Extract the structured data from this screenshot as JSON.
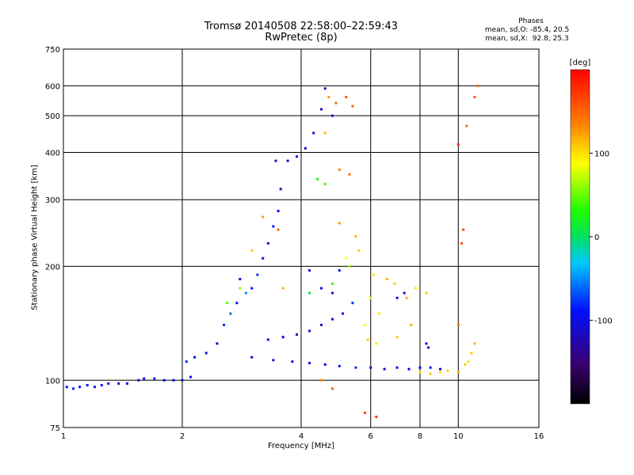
{
  "chart_data": {
    "type": "scatter",
    "title": "Tromsø 20140508 22:58:00–22:59:43",
    "subtitle": "RwPretec (8p)",
    "xlabel": "Frequency [MHz]",
    "ylabel": "Stationary phase Virtual Height [km]",
    "x_scale": "log",
    "y_scale": "log",
    "xlim": [
      1,
      16
    ],
    "ylim": [
      75,
      750
    ],
    "x_ticks": [
      1,
      2,
      4,
      6,
      8,
      10,
      16
    ],
    "y_ticks": [
      75,
      100,
      200,
      300,
      400,
      500,
      600,
      750
    ],
    "grid": true,
    "legend": {
      "title": "Phases",
      "lines": [
        "mean, sd,O: -85.4, 20.5",
        "mean, sd,X:  92.8, 25.3"
      ],
      "position": "top-right"
    },
    "colorbar": {
      "label": "[deg]",
      "ticks": [
        100,
        0,
        -100
      ],
      "range": [
        -200,
        200
      ],
      "position": "right"
    },
    "series": [
      {
        "name": "O",
        "points": [
          [
            1.02,
            96,
            -100
          ],
          [
            1.06,
            95,
            -90
          ],
          [
            1.1,
            96,
            -100
          ],
          [
            1.15,
            97,
            -95
          ],
          [
            1.2,
            96,
            -110
          ],
          [
            1.25,
            97,
            -100
          ],
          [
            1.3,
            98,
            -90
          ],
          [
            1.38,
            98,
            -100
          ],
          [
            1.45,
            98,
            -110
          ],
          [
            1.55,
            100,
            -100
          ],
          [
            1.6,
            101,
            -90
          ],
          [
            1.7,
            101,
            -95
          ],
          [
            1.8,
            100,
            -100
          ],
          [
            1.9,
            100,
            -110
          ],
          [
            2.0,
            100,
            -100
          ],
          [
            2.1,
            102,
            -90
          ],
          [
            2.05,
            112,
            -80
          ],
          [
            2.15,
            115,
            -100
          ],
          [
            2.3,
            118,
            -90
          ],
          [
            2.45,
            125,
            -100
          ],
          [
            2.55,
            140,
            -80
          ],
          [
            2.65,
            150,
            -60
          ],
          [
            2.75,
            160,
            -90
          ],
          [
            2.9,
            170,
            -50
          ],
          [
            2.8,
            185,
            -100
          ],
          [
            3.0,
            175,
            -95
          ],
          [
            3.1,
            190,
            -80
          ],
          [
            3.2,
            210,
            -100
          ],
          [
            3.3,
            230,
            -110
          ],
          [
            3.4,
            255,
            -90
          ],
          [
            3.5,
            280,
            -100
          ],
          [
            3.55,
            320,
            -110
          ],
          [
            3.45,
            380,
            -120
          ],
          [
            3.7,
            380,
            -110
          ],
          [
            3.9,
            390,
            -100
          ],
          [
            4.1,
            410,
            -115
          ],
          [
            4.3,
            450,
            -100
          ],
          [
            4.5,
            520,
            -110
          ],
          [
            4.6,
            590,
            -120
          ],
          [
            4.8,
            500,
            -100
          ],
          [
            3.3,
            128,
            -110
          ],
          [
            3.6,
            130,
            -100
          ],
          [
            3.9,
            132,
            -110
          ],
          [
            4.2,
            135,
            -100
          ],
          [
            4.5,
            140,
            -110
          ],
          [
            4.8,
            145,
            -100
          ],
          [
            5.1,
            150,
            -90
          ],
          [
            5.4,
            160,
            -80
          ],
          [
            3.0,
            115,
            -100
          ],
          [
            3.4,
            113,
            -110
          ],
          [
            3.8,
            112,
            -110
          ],
          [
            4.2,
            111,
            -100
          ],
          [
            4.6,
            110,
            -100
          ],
          [
            5.0,
            109,
            -90
          ],
          [
            5.5,
            108,
            -80
          ],
          [
            6.0,
            108,
            -100
          ],
          [
            6.5,
            107,
            -110
          ],
          [
            7.0,
            108,
            -100
          ],
          [
            7.5,
            107,
            -90
          ],
          [
            8.0,
            108,
            -100
          ],
          [
            8.5,
            108,
            -100
          ],
          [
            9.0,
            107,
            -110
          ],
          [
            5.0,
            195,
            -100
          ],
          [
            4.2,
            195,
            -100
          ],
          [
            4.5,
            175,
            -110
          ],
          [
            4.8,
            170,
            -100
          ],
          [
            7.0,
            165,
            -110
          ],
          [
            7.3,
            170,
            -100
          ],
          [
            8.3,
            125,
            -100
          ],
          [
            8.4,
            122,
            -110
          ]
        ]
      },
      {
        "name": "X",
        "points": [
          [
            4.7,
            560,
            130
          ],
          [
            4.9,
            540,
            150
          ],
          [
            5.2,
            560,
            160
          ],
          [
            5.4,
            530,
            150
          ],
          [
            4.6,
            450,
            120
          ],
          [
            5.0,
            360,
            140
          ],
          [
            5.3,
            350,
            150
          ],
          [
            4.4,
            340,
            20
          ],
          [
            4.6,
            330,
            40
          ],
          [
            5.2,
            210,
            90
          ],
          [
            5.6,
            220,
            110
          ],
          [
            6.1,
            190,
            100
          ],
          [
            6.6,
            185,
            120
          ],
          [
            6.9,
            180,
            110
          ],
          [
            6.0,
            165,
            80
          ],
          [
            6.3,
            150,
            100
          ],
          [
            5.8,
            140,
            90
          ],
          [
            5.9,
            128,
            110
          ],
          [
            6.2,
            125,
            100
          ],
          [
            7.0,
            130,
            110
          ],
          [
            7.6,
            140,
            120
          ],
          [
            8.0,
            105,
            100
          ],
          [
            8.5,
            104,
            110
          ],
          [
            9.0,
            105,
            100
          ],
          [
            9.4,
            106,
            110
          ],
          [
            10.0,
            105,
            120
          ],
          [
            10.4,
            110,
            110
          ],
          [
            10.6,
            112,
            100
          ],
          [
            10.8,
            118,
            110
          ],
          [
            11.0,
            125,
            120
          ],
          [
            10.0,
            140,
            140
          ],
          [
            10.2,
            230,
            160
          ],
          [
            10.3,
            250,
            170
          ],
          [
            10.0,
            420,
            180
          ],
          [
            11.2,
            600,
            150
          ],
          [
            11.0,
            560,
            160
          ],
          [
            10.5,
            470,
            150
          ],
          [
            3.2,
            270,
            130
          ],
          [
            3.5,
            250,
            150
          ],
          [
            3.0,
            220,
            110
          ],
          [
            3.6,
            175,
            120
          ],
          [
            2.8,
            175,
            60
          ],
          [
            2.6,
            160,
            40
          ],
          [
            7.8,
            175,
            100
          ],
          [
            7.4,
            165,
            120
          ],
          [
            8.3,
            170,
            110
          ],
          [
            5.0,
            260,
            130
          ],
          [
            5.5,
            240,
            120
          ],
          [
            4.5,
            100,
            140
          ],
          [
            4.8,
            95,
            160
          ],
          [
            5.8,
            82,
            170
          ],
          [
            6.2,
            80,
            180
          ],
          [
            5.3,
            200,
            60
          ],
          [
            4.8,
            180,
            30
          ],
          [
            4.2,
            170,
            10
          ]
        ]
      }
    ]
  }
}
